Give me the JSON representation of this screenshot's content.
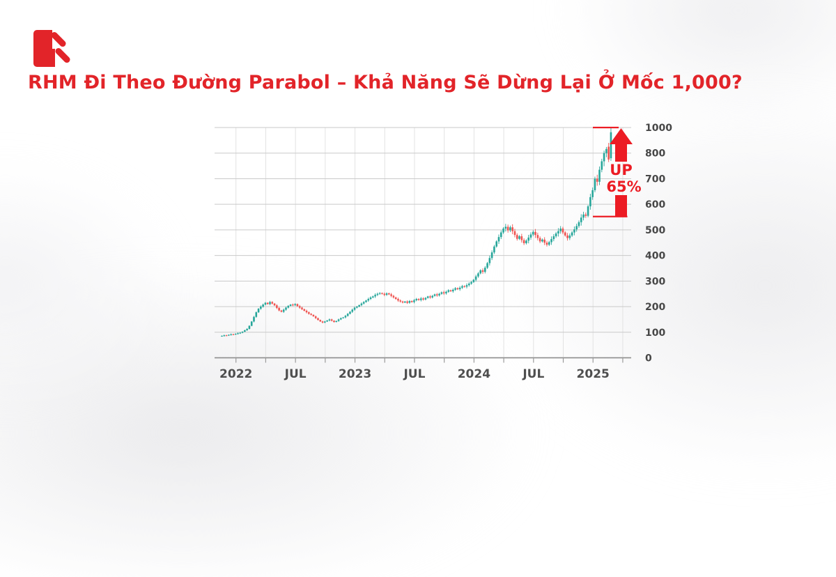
{
  "header": {
    "title": "RHM Đi Theo Đường Parabol – Khả Năng Sẽ Dừng Lại Ở Mốc 1,000?"
  },
  "colors": {
    "brand_red": "#e22429",
    "annotation_red": "#ec1c24",
    "candle_up": "#26a69a",
    "candle_down": "#ef5350",
    "gridline": "#c9c9c9",
    "gridline_vertical": "#e2e2e2",
    "axis_line": "#8d8d8d",
    "tick_label": "#474747"
  },
  "chart_data": {
    "type": "candlestick",
    "series_name": "RHM",
    "timeframe": "weekly",
    "x_tick_labels": [
      "2022",
      "JUL",
      "2023",
      "JUL",
      "2024",
      "JUL",
      "2025"
    ],
    "y_tick_values": [
      1000,
      800,
      700,
      600,
      500,
      400,
      300,
      200,
      100,
      0
    ],
    "weekly_closes": [
      86,
      88,
      87,
      90,
      92,
      91,
      94,
      96,
      98,
      102,
      108,
      113,
      125,
      142,
      160,
      178,
      192,
      200,
      208,
      215,
      210,
      218,
      212,
      205,
      195,
      185,
      180,
      188,
      196,
      203,
      208,
      206,
      210,
      202,
      196,
      190,
      184,
      178,
      172,
      168,
      162,
      155,
      148,
      142,
      138,
      142,
      146,
      150,
      145,
      140,
      144,
      150,
      155,
      158,
      164,
      172,
      180,
      188,
      196,
      200,
      206,
      212,
      218,
      224,
      230,
      236,
      240,
      246,
      250,
      253,
      250,
      246,
      252,
      248,
      242,
      236,
      230,
      224,
      220,
      216,
      220,
      215,
      222,
      218,
      225,
      230,
      226,
      232,
      228,
      234,
      240,
      236,
      242,
      248,
      244,
      250,
      256,
      252,
      258,
      264,
      260,
      266,
      272,
      268,
      274,
      280,
      278,
      284,
      290,
      296,
      305,
      318,
      330,
      342,
      336,
      352,
      370,
      390,
      412,
      435,
      455,
      472,
      490,
      505,
      512,
      498,
      510,
      495,
      480,
      465,
      475,
      460,
      448,
      458,
      470,
      482,
      492,
      480,
      468,
      455,
      462,
      450,
      442,
      452,
      464,
      475,
      486,
      495,
      505,
      490,
      478,
      468,
      478,
      490,
      502,
      515,
      530,
      548,
      560,
      555,
      592,
      628,
      655,
      700,
      688,
      735,
      768,
      800,
      832,
      775,
      963
    ],
    "ohlc_overrides": {
      "169": [
        850,
        880,
        765,
        775
      ],
      "170": [
        780,
        1000,
        770,
        963
      ]
    },
    "annotations": {
      "resistance_level": 1000,
      "breakout_level": 552,
      "arrow_text_line1": "UP",
      "arrow_text_line2": "65%"
    }
  }
}
